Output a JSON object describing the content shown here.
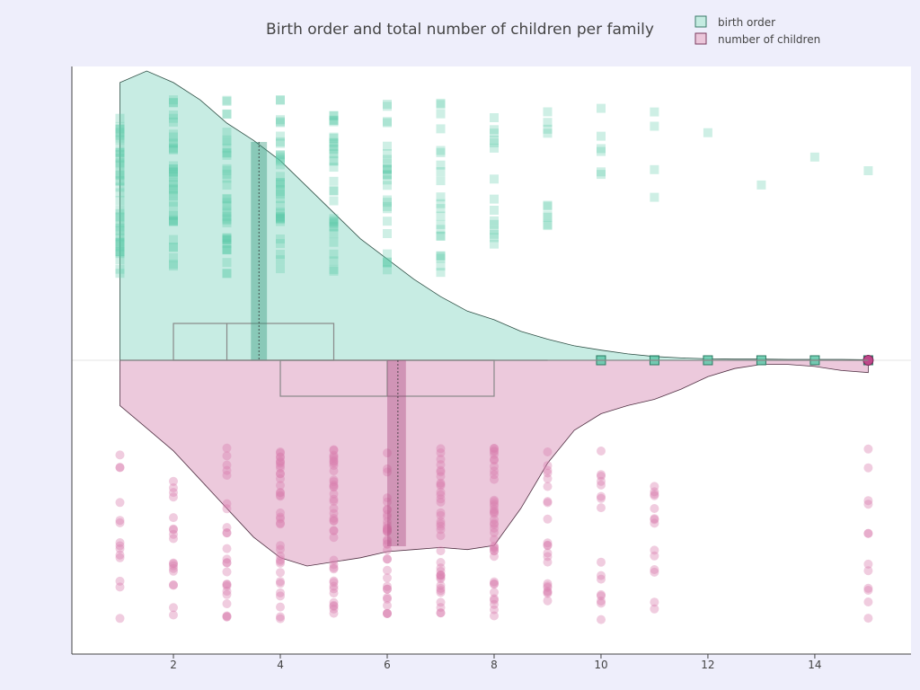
{
  "chart_data": {
    "type": "violin",
    "title": "Birth order and total number of children per family",
    "xlabel": "",
    "ylabel": "",
    "xlim": [
      0.1,
      15.8
    ],
    "x_ticks": [
      2,
      4,
      6,
      8,
      10,
      12,
      14
    ],
    "orientation": "horizontal",
    "legend_position": "top-right",
    "grid": false,
    "series": [
      {
        "name": "birth order",
        "color": "#5ec9a9",
        "fill": "#c4ebe1",
        "side": "positive",
        "marker": "square",
        "box": {
          "q1": 2,
          "median": 3,
          "q3": 5,
          "whisker_low": 1,
          "whisker_high": 9
        },
        "mean": 3.6,
        "mean_ci": [
          3.45,
          3.75
        ],
        "kde": {
          "x": [
            1,
            1.5,
            2,
            2.5,
            3,
            3.5,
            4,
            4.5,
            5,
            5.5,
            6,
            6.5,
            7,
            7.5,
            8,
            8.5,
            9,
            9.5,
            10,
            10.5,
            11,
            11.5,
            12,
            12.5,
            13,
            13.5,
            14,
            14.5,
            15
          ],
          "density": [
            0.96,
            1.0,
            0.96,
            0.9,
            0.82,
            0.76,
            0.69,
            0.6,
            0.51,
            0.42,
            0.35,
            0.28,
            0.22,
            0.17,
            0.14,
            0.1,
            0.073,
            0.05,
            0.035,
            0.022,
            0.013,
            0.008,
            0.005,
            0.004,
            0.004,
            0.003,
            0.003,
            0.003,
            0.002
          ]
        },
        "points": [
          {
            "x": 1,
            "count": 45
          },
          {
            "x": 2,
            "count": 40
          },
          {
            "x": 3,
            "count": 38
          },
          {
            "x": 4,
            "count": 36
          },
          {
            "x": 5,
            "count": 32
          },
          {
            "x": 6,
            "count": 26
          },
          {
            "x": 7,
            "count": 22
          },
          {
            "x": 8,
            "count": 15
          },
          {
            "x": 9,
            "count": 10
          },
          {
            "x": 10,
            "count": 6
          },
          {
            "x": 11,
            "count": 4
          },
          {
            "x": 12,
            "count": 1
          },
          {
            "x": 13,
            "count": 1
          },
          {
            "x": 14,
            "count": 1
          },
          {
            "x": 15,
            "count": 1
          }
        ]
      },
      {
        "name": "number of children",
        "color": "#d97fae",
        "fill": "#ebc6da",
        "side": "negative",
        "marker": "circle",
        "box": {
          "q1": 4,
          "median": 6,
          "q3": 8,
          "whisker_low": 1,
          "whisker_high": 15
        },
        "mean": 6.2,
        "mean_ci": [
          6.0,
          6.35
        ],
        "kde": {
          "x": [
            1,
            1.5,
            2,
            2.5,
            3,
            3.5,
            4,
            4.5,
            5,
            5.5,
            6,
            6.5,
            7,
            7.5,
            8,
            8.5,
            9,
            9.5,
            10,
            10.5,
            11,
            11.5,
            12,
            12.5,
            13,
            13.5,
            14,
            14.5,
            15
          ],
          "density": [
            0.22,
            0.33,
            0.44,
            0.58,
            0.72,
            0.86,
            0.96,
            1.0,
            0.98,
            0.96,
            0.93,
            0.92,
            0.91,
            0.92,
            0.9,
            0.72,
            0.5,
            0.34,
            0.26,
            0.22,
            0.19,
            0.14,
            0.08,
            0.04,
            0.02,
            0.02,
            0.03,
            0.05,
            0.06
          ]
        },
        "points": [
          {
            "x": 1,
            "count": 14
          },
          {
            "x": 2,
            "count": 18
          },
          {
            "x": 3,
            "count": 24
          },
          {
            "x": 4,
            "count": 36
          },
          {
            "x": 5,
            "count": 40
          },
          {
            "x": 6,
            "count": 36
          },
          {
            "x": 7,
            "count": 38
          },
          {
            "x": 8,
            "count": 40
          },
          {
            "x": 9,
            "count": 22
          },
          {
            "x": 10,
            "count": 16
          },
          {
            "x": 11,
            "count": 14
          },
          {
            "x": 15,
            "count": 12
          }
        ]
      }
    ]
  }
}
